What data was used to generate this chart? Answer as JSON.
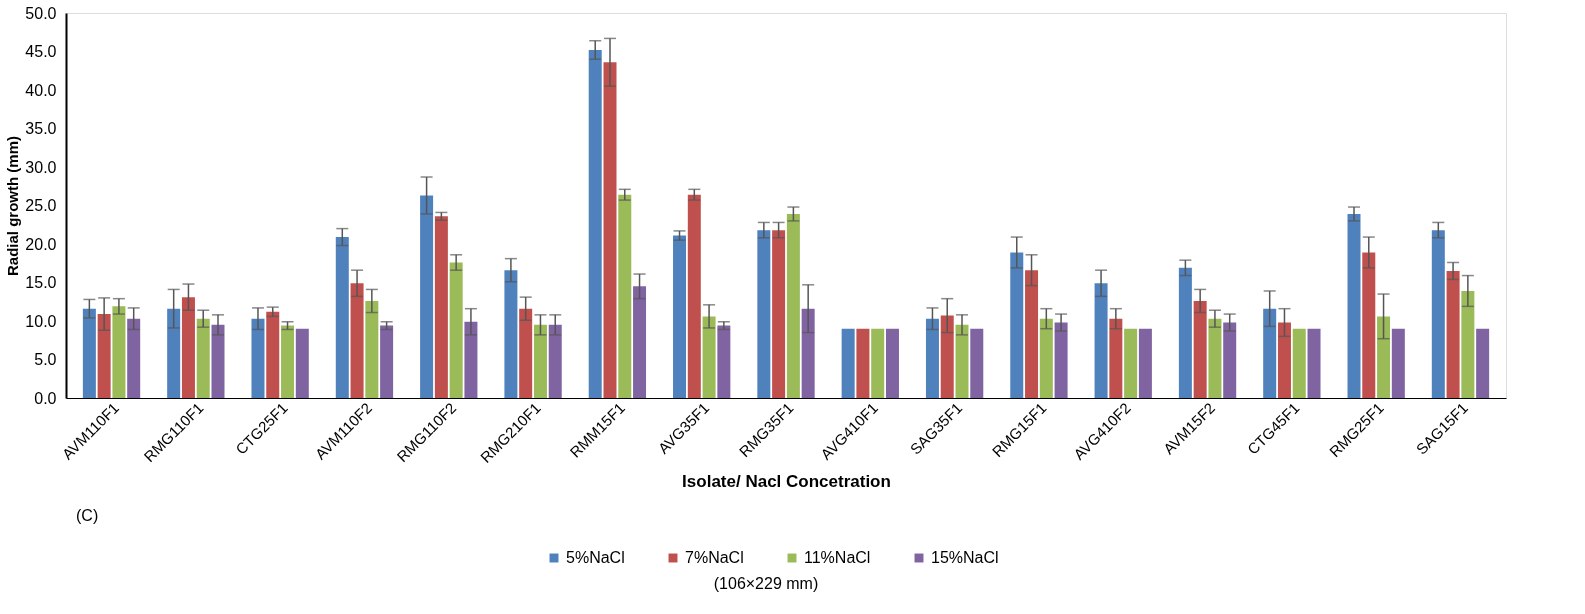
{
  "chart_data": {
    "type": "bar",
    "xlabel": "Isolate/ Nacl Concetration",
    "ylabel": "Radial growth (mm)",
    "categories": [
      "AVM110F1",
      "RMG110F1",
      "CTG25F1",
      "AVM110F2",
      "RMG110F2",
      "RMG210F1",
      "RMM15F1",
      "AVG35F1",
      "RMG35F1",
      "AVG410F1",
      "SAG35F1",
      "RMG15F1",
      "AVG410F2",
      "AVM15F2",
      "CTG45F1",
      "RMG25F1",
      "SAG15F1"
    ],
    "series": [
      {
        "name": "5%NaCl",
        "color": "#4f81bd",
        "values": [
          11.6,
          11.6,
          10.3,
          20.9,
          26.3,
          16.6,
          45.2,
          21.1,
          21.8,
          9.0,
          10.3,
          18.9,
          14.9,
          16.9,
          11.6,
          23.9,
          21.8
        ],
        "errors": [
          1.2,
          2.5,
          1.4,
          1.1,
          2.4,
          1.5,
          1.2,
          0.6,
          1.0,
          null,
          1.4,
          2.0,
          1.7,
          1.0,
          2.3,
          0.9,
          1.0
        ]
      },
      {
        "name": "7%NaCl",
        "color": "#c0504d",
        "values": [
          10.9,
          13.1,
          11.2,
          14.9,
          23.6,
          11.6,
          43.6,
          26.4,
          21.8,
          9.0,
          10.7,
          16.6,
          10.3,
          12.6,
          9.8,
          18.9,
          16.5
        ],
        "errors": [
          2.1,
          1.7,
          0.6,
          1.7,
          0.5,
          1.5,
          3.1,
          0.7,
          1.0,
          null,
          2.2,
          2.0,
          1.3,
          1.5,
          1.8,
          2.0,
          1.1
        ]
      },
      {
        "name": "11%NaCl",
        "color": "#9bbb59",
        "values": [
          11.9,
          10.3,
          9.4,
          12.6,
          17.6,
          9.5,
          26.4,
          10.6,
          23.9,
          9.0,
          9.5,
          10.3,
          9.0,
          10.3,
          9.0,
          10.6,
          13.9
        ],
        "errors": [
          1.0,
          1.1,
          0.5,
          1.5,
          1.0,
          1.3,
          0.7,
          1.5,
          0.9,
          null,
          1.3,
          1.3,
          null,
          1.1,
          null,
          2.9,
          2.0
        ]
      },
      {
        "name": "15%NaCl",
        "color": "#8064a2",
        "values": [
          10.3,
          9.5,
          9.0,
          9.4,
          9.9,
          9.5,
          14.5,
          9.4,
          11.6,
          9.0,
          9.0,
          9.8,
          9.0,
          9.8,
          9.0,
          9.0,
          9.0
        ],
        "errors": [
          1.4,
          1.3,
          null,
          0.5,
          1.7,
          1.3,
          1.6,
          0.5,
          3.1,
          null,
          null,
          1.1,
          null,
          1.1,
          null,
          null,
          null
        ]
      }
    ],
    "ylim": [
      0,
      50
    ],
    "yticks": [
      {
        "value": 0,
        "label": "0.0"
      },
      {
        "value": 5,
        "label": "5.0"
      },
      {
        "value": 10,
        "label": "10.0"
      },
      {
        "value": 15,
        "label": "15.0"
      },
      {
        "value": 20,
        "label": "20.0"
      },
      {
        "value": 25,
        "label": "25.0"
      },
      {
        "value": 30,
        "label": "30.0"
      },
      {
        "value": 35,
        "label": "35.0"
      },
      {
        "value": 40,
        "label": "40.0"
      },
      {
        "value": 45,
        "label": "45.0"
      },
      {
        "value": 50,
        "label": "50.0"
      }
    ],
    "grid": false,
    "legend": "bottom",
    "annotations": [
      "(C)",
      "(106×229 mm)"
    ]
  }
}
